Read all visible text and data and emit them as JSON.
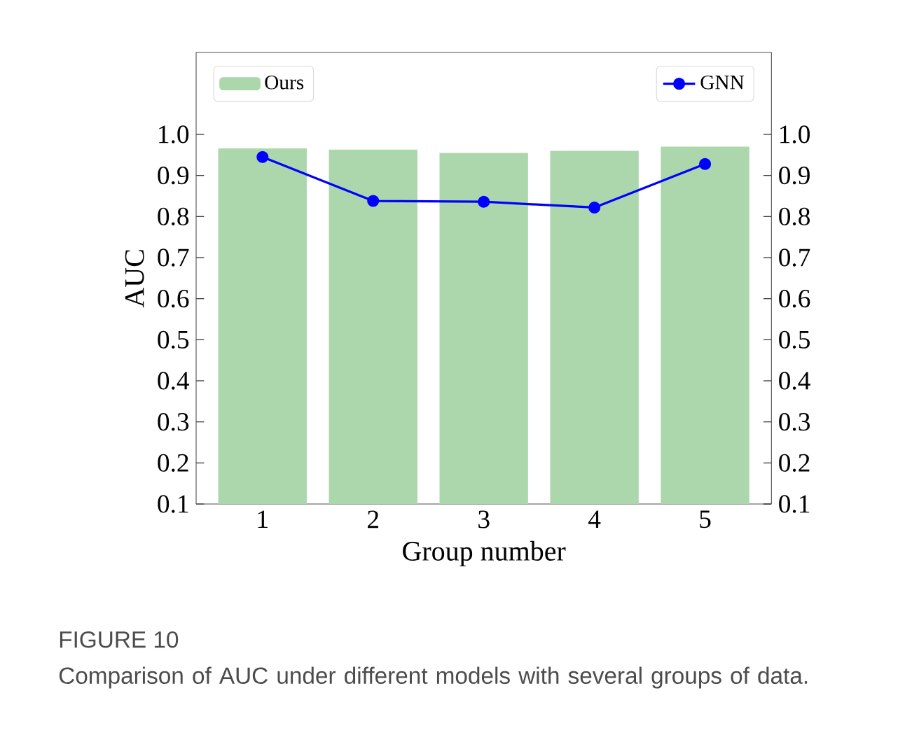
{
  "chart_data": {
    "type": "bar",
    "xlabel": "Group number",
    "ylabel": "AUC",
    "categories": [
      "1",
      "2",
      "3",
      "4",
      "5"
    ],
    "series": [
      {
        "name": "Ours",
        "color": "#acd6ac",
        "values": [
          0.966,
          0.963,
          0.955,
          0.96,
          0.97
        ]
      },
      {
        "name": "GNN",
        "type": "line",
        "axis": "y2",
        "color": "#0000ff",
        "marker": "circle",
        "values": [
          0.945,
          0.838,
          0.836,
          0.822,
          0.928
        ]
      }
    ],
    "ylim": [
      0.1,
      1.2
    ],
    "yticks": [
      0.1,
      0.2,
      0.3,
      0.4,
      0.5,
      0.6,
      0.7,
      0.8,
      0.9,
      {
        "value": 1.0,
        "label": "1.0"
      }
    ],
    "y2lim": [
      0.1,
      1.2
    ],
    "y2ticks": [
      0.1,
      0.2,
      0.3,
      0.4,
      0.5,
      0.6,
      0.7,
      0.8,
      0.9,
      {
        "value": 1.0,
        "label": "1.0"
      }
    ],
    "legend": "top",
    "annotations": [
      "FIGURE 10",
      "Comparison of AUC under different models with several groups of data."
    ]
  }
}
